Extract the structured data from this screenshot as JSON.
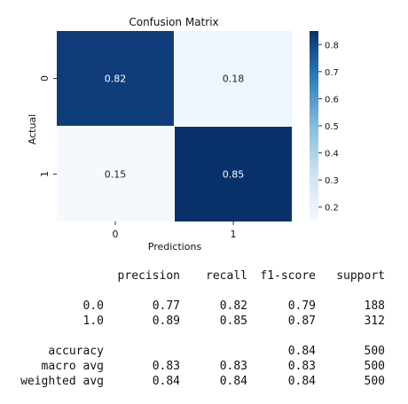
{
  "chart_data": {
    "type": "heatmap",
    "title": "Confusion Matrix",
    "xlabel": "Predictions",
    "ylabel": "Actual",
    "x_categories": [
      "0",
      "1"
    ],
    "y_categories": [
      "0",
      "1"
    ],
    "values": [
      [
        0.82,
        0.18
      ],
      [
        0.15,
        0.85
      ]
    ],
    "colormap": "Blues",
    "colorbar": {
      "range": [
        0.15,
        0.85
      ],
      "ticks": [
        "0.2",
        "0.3",
        "0.4",
        "0.5",
        "0.6",
        "0.7",
        "0.8"
      ]
    },
    "colors": {
      "low": "#eef5fc",
      "high": "#08306b",
      "annotation_dark": "#222222",
      "annotation_light": "#ffffff"
    }
  },
  "report": {
    "headers": [
      "precision",
      "recall",
      "f1-score",
      "support"
    ],
    "rows": [
      [
        "0.0",
        "0.77",
        "0.82",
        "0.79",
        "188"
      ],
      [
        "1.0",
        "0.89",
        "0.85",
        "0.87",
        "312"
      ],
      [
        "accuracy",
        "",
        "",
        "0.84",
        "500"
      ],
      [
        "macro avg",
        "0.83",
        "0.83",
        "0.83",
        "500"
      ],
      [
        "weighted avg",
        "0.84",
        "0.84",
        "0.84",
        "500"
      ]
    ]
  }
}
